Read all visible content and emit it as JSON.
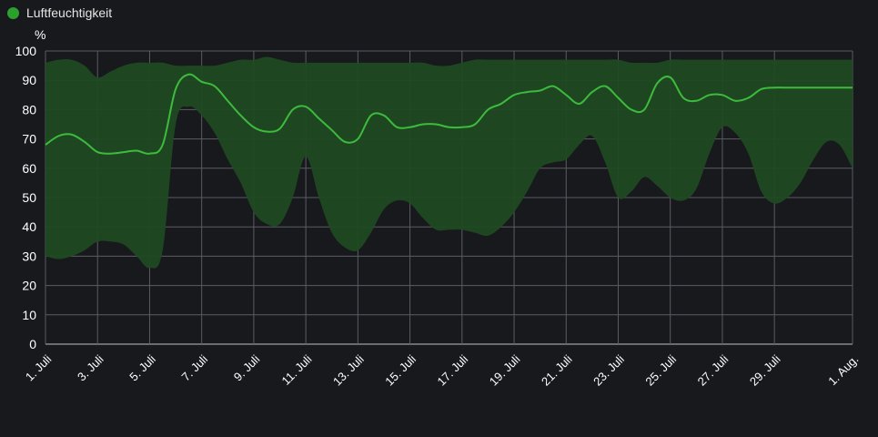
{
  "legend": {
    "label": "Luftfeuchtigkeit",
    "color": "#2ca02c"
  },
  "colors": {
    "line": "#3dbb3d",
    "band": "#1f4a22",
    "grid": "#5a5c62",
    "background": "#18191d"
  },
  "chart_data": {
    "type": "area",
    "ylabel": "%",
    "ylim": [
      0,
      100
    ],
    "y_ticks": [
      "0",
      "10",
      "20",
      "30",
      "40",
      "50",
      "60",
      "70",
      "80",
      "90",
      "100"
    ],
    "x_range": [
      1,
      32
    ],
    "x_ticks": [
      {
        "day": 1,
        "label": "1. Juli"
      },
      {
        "day": 3,
        "label": "3. Juli"
      },
      {
        "day": 5,
        "label": "5. Juli"
      },
      {
        "day": 7,
        "label": "7. Juli"
      },
      {
        "day": 9,
        "label": "9. Juli"
      },
      {
        "day": 11,
        "label": "11. Juli"
      },
      {
        "day": 13,
        "label": "13. Juli"
      },
      {
        "day": 15,
        "label": "15. Juli"
      },
      {
        "day": 17,
        "label": "17. Juli"
      },
      {
        "day": 19,
        "label": "19. Juli"
      },
      {
        "day": 21,
        "label": "21. Juli"
      },
      {
        "day": 23,
        "label": "23. Juli"
      },
      {
        "day": 25,
        "label": "25. Juli"
      },
      {
        "day": 27,
        "label": "27. Juli"
      },
      {
        "day": 29,
        "label": "29. Juli"
      },
      {
        "day": 32,
        "label": "1. Aug."
      }
    ],
    "grid": true,
    "legend_position": "top-left",
    "series": [
      {
        "name": "Luftfeuchtigkeit",
        "x": [
          1,
          1.5,
          2,
          2.5,
          3,
          3.5,
          4,
          4.5,
          5,
          5.5,
          6,
          6.5,
          7,
          7.5,
          8,
          8.5,
          9,
          9.5,
          10,
          10.5,
          11,
          11.5,
          12,
          12.5,
          13,
          13.5,
          14,
          14.5,
          15,
          15.5,
          16,
          16.5,
          17,
          17.5,
          18,
          18.5,
          19,
          19.5,
          20,
          20.5,
          21,
          21.5,
          22,
          22.5,
          23,
          23.5,
          24,
          24.5,
          25,
          25.5,
          26,
          26.5,
          27,
          27.5,
          28,
          28.5,
          29,
          29.5,
          30,
          30.5,
          31,
          31.5,
          32
        ],
        "mean": [
          68,
          71,
          71.5,
          69,
          65.5,
          65,
          65.5,
          66,
          65,
          68,
          87,
          92,
          89.5,
          88,
          83,
          78,
          74,
          72.5,
          73.5,
          80,
          81,
          77,
          73,
          69,
          70,
          78,
          78,
          74,
          74,
          75,
          75,
          74,
          74,
          75,
          80,
          82,
          85,
          86,
          86.5,
          88,
          85,
          82,
          86,
          88,
          84,
          80,
          80,
          89,
          91,
          84,
          83,
          85,
          85,
          83,
          84,
          87,
          87.5,
          87.5,
          87.5,
          87.5,
          87.5,
          87.5,
          87.5
        ],
        "max": [
          96,
          97,
          97,
          95,
          91,
          93,
          95,
          96,
          96,
          96,
          95,
          95,
          95,
          95,
          96,
          97,
          97,
          98,
          97,
          96,
          96,
          96,
          96,
          96,
          96,
          96,
          96,
          96,
          96,
          96,
          95,
          95,
          96,
          97,
          97,
          97,
          97,
          97,
          97,
          97,
          97,
          97,
          97,
          97,
          97,
          96,
          96,
          96,
          97,
          97,
          97,
          97,
          97,
          97,
          97,
          97,
          97,
          97,
          97,
          97,
          97,
          97,
          97
        ],
        "min": [
          30,
          29,
          30,
          32,
          35,
          35,
          34,
          30,
          26,
          32,
          75,
          81,
          78,
          72,
          63,
          55,
          45,
          41,
          41,
          50,
          64,
          50,
          38,
          33,
          32,
          38,
          46,
          49,
          48,
          43,
          39,
          39,
          39,
          38,
          37,
          40,
          45,
          52,
          60,
          62,
          63,
          68,
          71,
          62,
          50,
          52,
          57,
          54,
          50,
          49,
          53,
          65,
          74,
          72,
          65,
          52,
          48,
          50,
          55,
          63,
          69,
          68,
          60
        ]
      }
    ]
  }
}
